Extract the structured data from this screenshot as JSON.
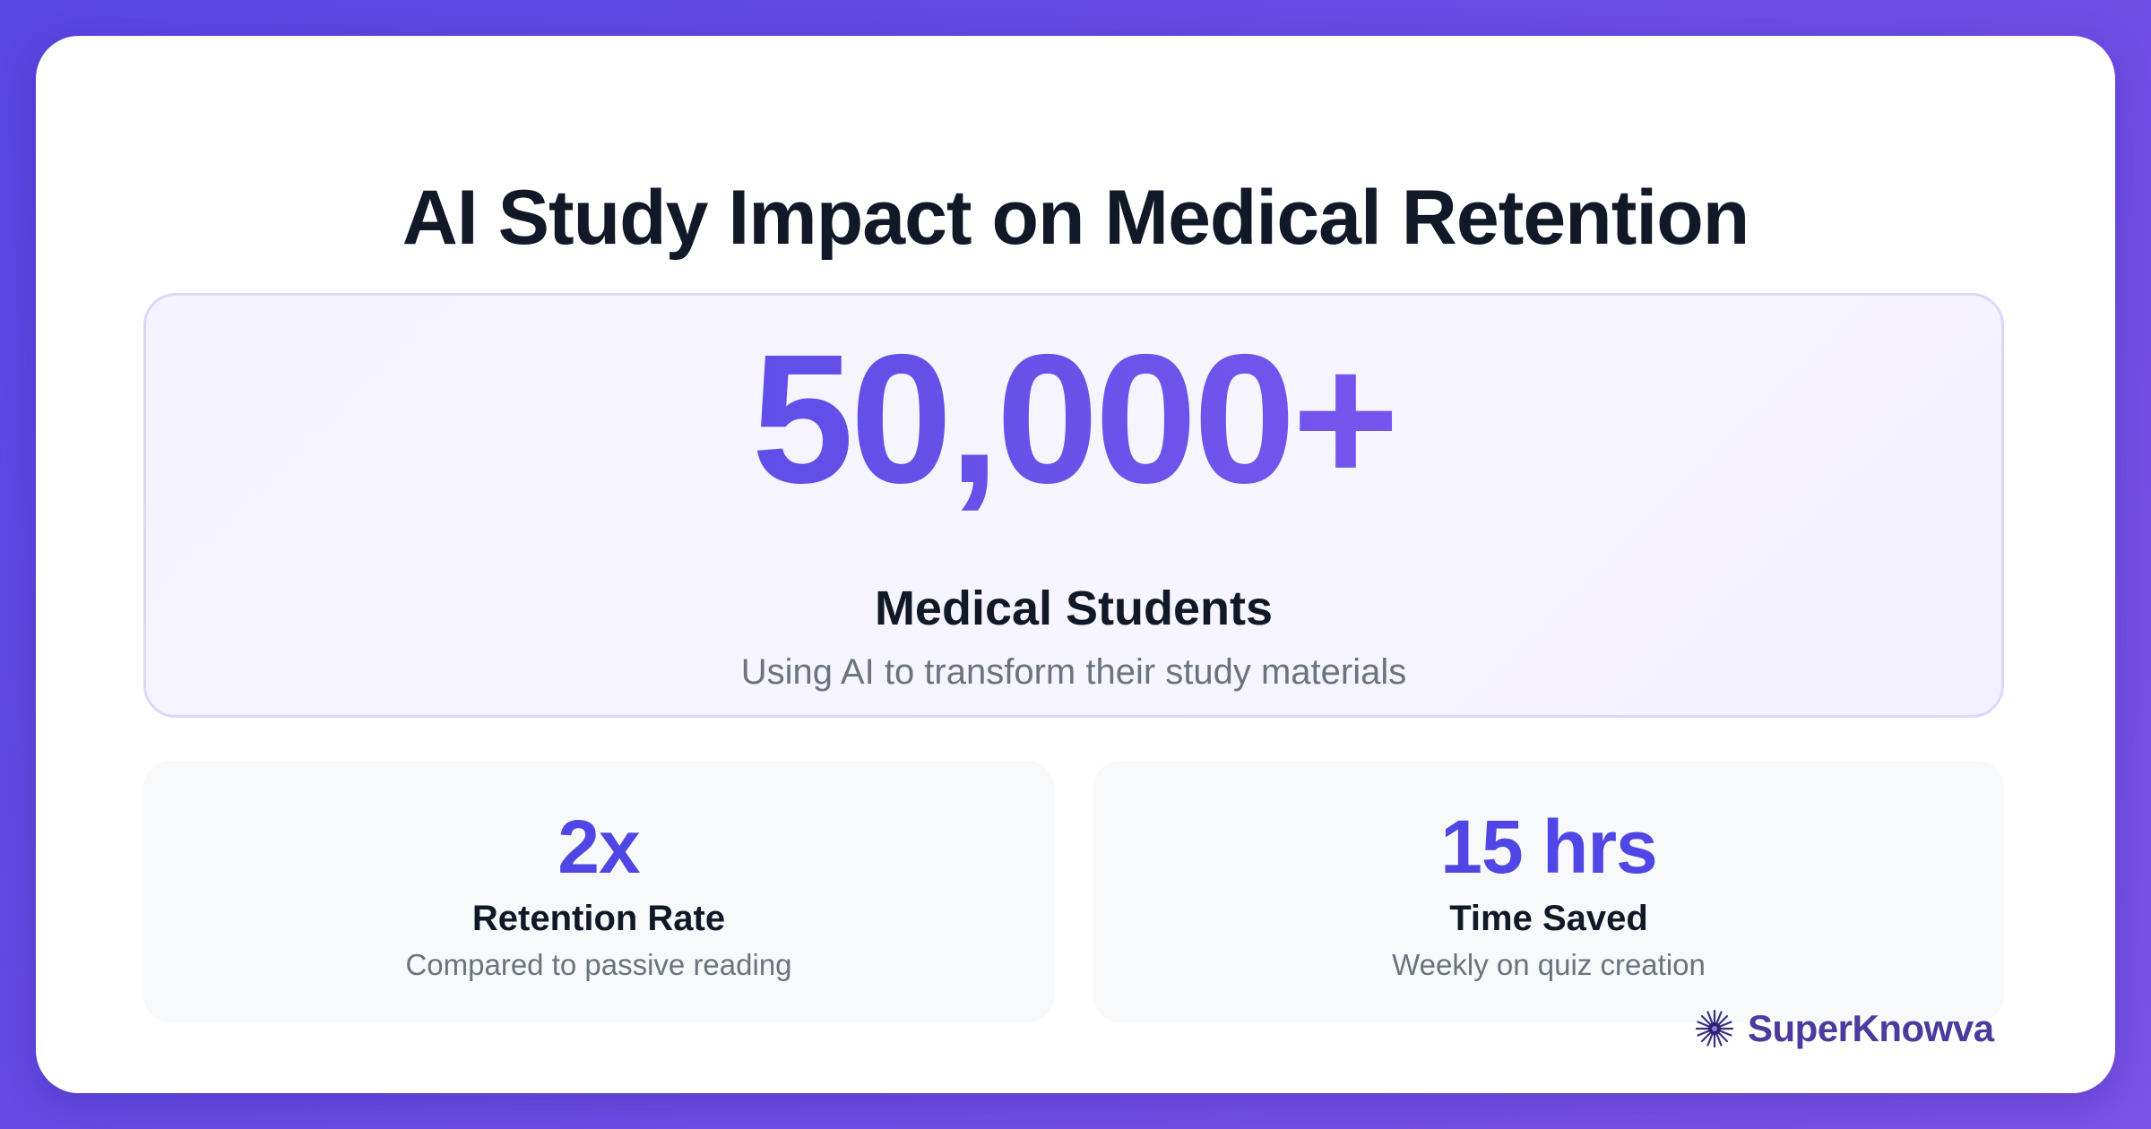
{
  "title": "AI Study Impact on Medical Retention",
  "hero": {
    "value": "50,000+",
    "label": "Medical Students",
    "description": "Using AI to transform their study materials"
  },
  "stats": [
    {
      "value": "2x",
      "label": "Retention Rate",
      "description": "Compared to passive reading"
    },
    {
      "value": "15 hrs",
      "label": "Time Saved",
      "description": "Weekly on quiz creation"
    }
  ],
  "brand": {
    "name": "SuperKnowva",
    "icon": "starburst-logo-icon"
  },
  "colors": {
    "accent": "#4f46e5",
    "accent_gradient_end": "#8b5cf6",
    "background_gradient_start": "#5a46e3",
    "background_gradient_end": "#7a52e8",
    "heading": "#111827",
    "muted_text": "#6b7280",
    "brand_text": "#4c3a9e"
  }
}
